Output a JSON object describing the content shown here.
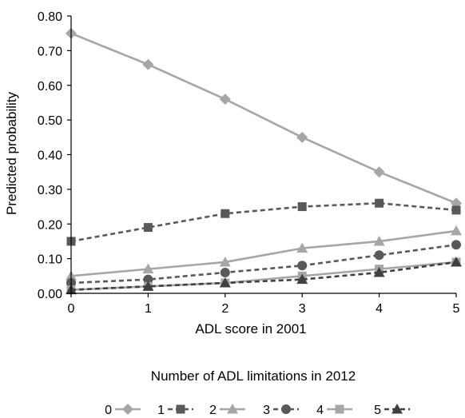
{
  "chart_data": {
    "type": "line",
    "xlabel": "ADL score in 2001",
    "ylabel": "Predicted probability",
    "x": [
      0,
      1,
      2,
      3,
      4,
      5
    ],
    "xlim": [
      0,
      5
    ],
    "ylim": [
      0,
      0.8
    ],
    "x_ticks": [
      "0",
      "1",
      "2",
      "3",
      "4",
      "5"
    ],
    "y_ticks": [
      "0.00",
      "0.10",
      "0.20",
      "0.30",
      "0.40",
      "0.50",
      "0.60",
      "0.70",
      "0.80"
    ],
    "grid": false,
    "legend_position": "bottom",
    "legend_title": "Number of ADL limitations in 2012",
    "series": [
      {
        "name": "0",
        "values": [
          0.75,
          0.66,
          0.56,
          0.45,
          0.35,
          0.26
        ],
        "color": "#a6a6a6",
        "dash": "solid",
        "marker": "diamond"
      },
      {
        "name": "1",
        "values": [
          0.15,
          0.19,
          0.23,
          0.25,
          0.26,
          0.24
        ],
        "color": "#595959",
        "dash": "dashed",
        "marker": "square"
      },
      {
        "name": "2",
        "values": [
          0.05,
          0.07,
          0.09,
          0.13,
          0.15,
          0.18
        ],
        "color": "#a6a6a6",
        "dash": "solid",
        "marker": "triangle"
      },
      {
        "name": "3",
        "values": [
          0.03,
          0.04,
          0.06,
          0.08,
          0.11,
          0.14
        ],
        "color": "#595959",
        "dash": "dashed",
        "marker": "circle"
      },
      {
        "name": "4",
        "values": [
          0.01,
          0.02,
          0.03,
          0.05,
          0.07,
          0.09
        ],
        "color": "#a6a6a6",
        "dash": "solid",
        "marker": "square"
      },
      {
        "name": "5",
        "values": [
          0.01,
          0.02,
          0.03,
          0.04,
          0.06,
          0.09
        ],
        "color": "#404040",
        "dash": "dashed",
        "marker": "triangle"
      }
    ]
  }
}
